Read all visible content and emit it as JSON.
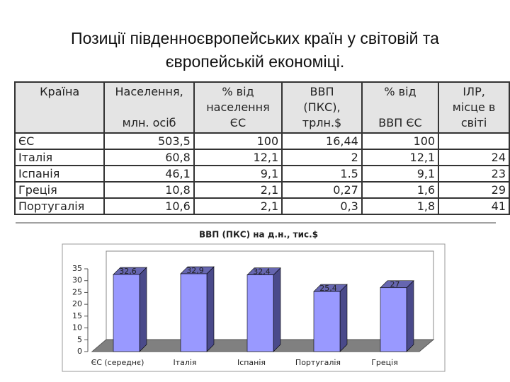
{
  "title": [
    "Позиції південноєвропейських країн у світовій та",
    "європейській економіці."
  ],
  "table": {
    "header": [
      [
        "Країна"
      ],
      [
        "Населення,",
        "млн. осіб"
      ],
      [
        "% від",
        "населення",
        "ЄС"
      ],
      [
        "ВВП",
        "(ПКС),",
        "трлн.$"
      ],
      [
        "% від",
        "ВВП ЄС"
      ],
      [
        "ІЛР,",
        "місце в",
        "світі"
      ]
    ],
    "rows": [
      [
        "ЄС",
        "503,5",
        "100",
        "16,44",
        "100",
        null
      ],
      [
        "Італія",
        "60,8",
        "12,1",
        "2",
        "12,1",
        "24"
      ],
      [
        "Іспанія",
        "46,1",
        "9,1",
        "1.5",
        "9,1",
        "23"
      ],
      [
        "Греція",
        "10,8",
        "2,1",
        "0,27",
        "1,6",
        "29"
      ],
      [
        "Португалія",
        "10,6",
        "2,1",
        "0,3",
        "1,8",
        "41"
      ]
    ]
  },
  "chart_data": {
    "type": "bar",
    "title": "ВВП (ПКС) на д.н., тис.$",
    "categories": [
      "ЄС (середнє)",
      "Італія",
      "Іспанія",
      "Португалія",
      "Греція"
    ],
    "values": [
      32.6,
      32.9,
      32.4,
      25.4,
      27
    ],
    "value_labels": [
      "32,6",
      "32,9",
      "32,4",
      "25,4",
      "27"
    ],
    "color": "#9999ff",
    "ylim": [
      0,
      35
    ],
    "yticks": [
      0,
      5,
      10,
      15,
      20,
      25,
      30,
      35
    ]
  }
}
